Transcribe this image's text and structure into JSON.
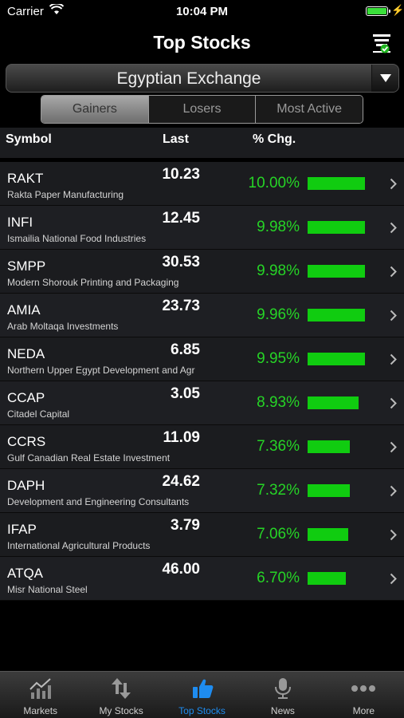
{
  "status_bar": {
    "carrier": "Carrier",
    "time": "10:04 PM"
  },
  "nav": {
    "title": "Top Stocks"
  },
  "exchange": {
    "selected": "Egyptian Exchange"
  },
  "segments": [
    "Gainers",
    "Losers",
    "Most Active"
  ],
  "active_segment": "Gainers",
  "table": {
    "headers": {
      "symbol": "Symbol",
      "last": "Last",
      "change": "% Chg."
    },
    "rows": [
      {
        "symbol": "RAKT",
        "name": "Rakta Paper Manufacturing",
        "last": "10.23",
        "change": "10.00%",
        "change_value": 10.0
      },
      {
        "symbol": "INFI",
        "name": "Ismailia National Food Industries",
        "last": "12.45",
        "change": "9.98%",
        "change_value": 9.98
      },
      {
        "symbol": "SMPP",
        "name": "Modern Shorouk Printing and Packaging",
        "last": "30.53",
        "change": "9.98%",
        "change_value": 9.98
      },
      {
        "symbol": "AMIA",
        "name": "Arab Moltaqa Investments",
        "last": "23.73",
        "change": "9.96%",
        "change_value": 9.96
      },
      {
        "symbol": "NEDA",
        "name": "Northern Upper Egypt Development and Agr",
        "last": "6.85",
        "change": "9.95%",
        "change_value": 9.95
      },
      {
        "symbol": "CCAP",
        "name": "Citadel Capital",
        "last": "3.05",
        "change": "8.93%",
        "change_value": 8.93
      },
      {
        "symbol": "CCRS",
        "name": "Gulf Canadian Real Estate Investment",
        "last": "11.09",
        "change": "7.36%",
        "change_value": 7.36
      },
      {
        "symbol": "DAPH",
        "name": "Development and Engineering Consultants",
        "last": "24.62",
        "change": "7.32%",
        "change_value": 7.32
      },
      {
        "symbol": "IFAP",
        "name": "International Agricultural Products",
        "last": "3.79",
        "change": "7.06%",
        "change_value": 7.06
      },
      {
        "symbol": "ATQA",
        "name": "Misr National Steel",
        "last": "46.00",
        "change": "6.70%",
        "change_value": 6.7
      }
    ]
  },
  "tabs": [
    {
      "label": "Markets",
      "icon": "markets-chart-icon"
    },
    {
      "label": "My Stocks",
      "icon": "up-down-arrows-icon"
    },
    {
      "label": "Top Stocks",
      "icon": "thumbs-up-icon"
    },
    {
      "label": "News",
      "icon": "microphone-icon"
    },
    {
      "label": "More",
      "icon": "more-dots-icon"
    }
  ],
  "active_tab": "Top Stocks",
  "colors": {
    "gain": "#26d426",
    "bar": "#10cc10",
    "active_tab": "#1e8cf0"
  }
}
